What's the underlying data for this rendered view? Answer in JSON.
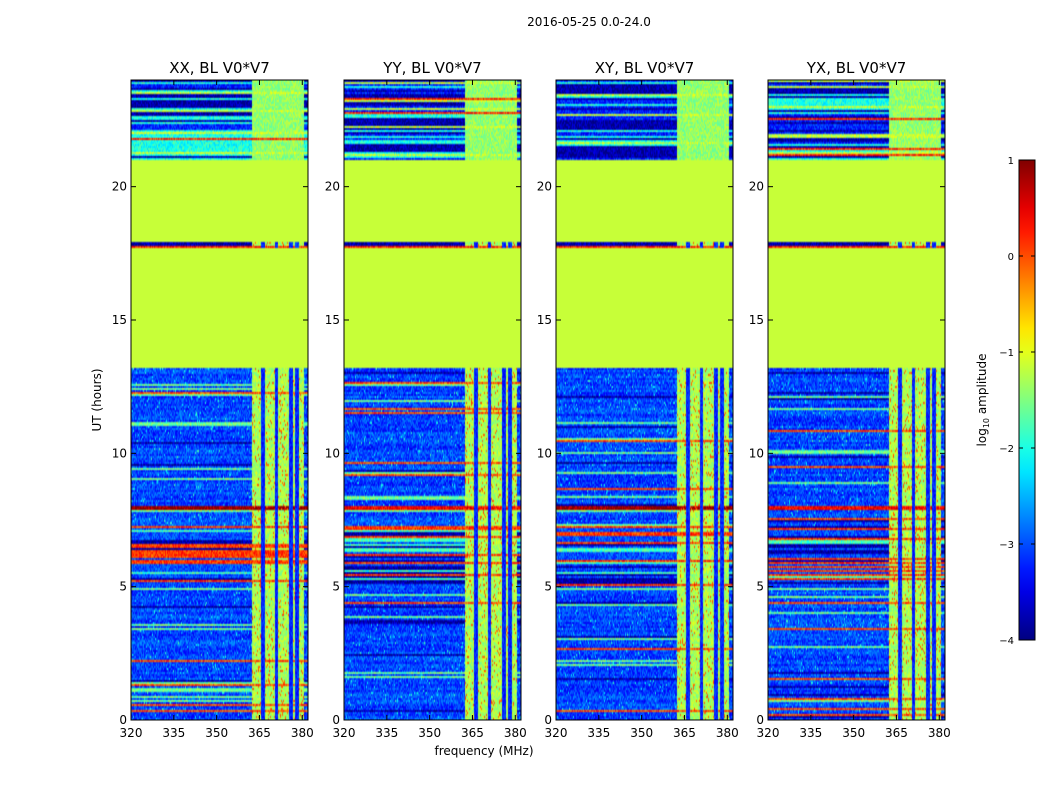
{
  "suptitle": "2016-05-25 0.0-24.0",
  "chart_data": {
    "type": "heatmap",
    "panels": [
      {
        "title": "XX, BL V0*V7",
        "variant": 0
      },
      {
        "title": "YY, BL V0*V7",
        "variant": 1
      },
      {
        "title": "XY, BL V0*V7",
        "variant": 2
      },
      {
        "title": "YX, BL V0*V7",
        "variant": 3
      }
    ],
    "xlabel": "frequency (MHz)",
    "ylabel": "UT (hours)",
    "xlim": [
      320,
      382
    ],
    "ylim": [
      0,
      24
    ],
    "xticks": [
      "320",
      "335",
      "350",
      "365",
      "380"
    ],
    "xtick_values": [
      320,
      335,
      350,
      365,
      380
    ],
    "yticks": [
      "0",
      "5",
      "10",
      "15",
      "20"
    ],
    "ytick_values": [
      0,
      5,
      10,
      15,
      20
    ],
    "colorbar": {
      "label_prefix": "log",
      "label_sub": "10",
      "label_suffix": " amplitude",
      "range": [
        -4,
        1
      ],
      "ticks": [
        "1",
        "0",
        "−1",
        "−2",
        "−3",
        "−4"
      ],
      "tick_values": [
        1,
        0,
        -1,
        -2,
        -3,
        -4
      ],
      "colormap": "jet"
    },
    "flagged_rows_hours": [
      [
        13.2,
        17.7
      ],
      [
        17.9,
        21.0
      ]
    ],
    "flagged_value_log10": -1.15,
    "rfi_band_mhz": [
      362.5,
      380.5
    ],
    "strong_row_hours": [
      7.9,
      8.0
    ]
  }
}
